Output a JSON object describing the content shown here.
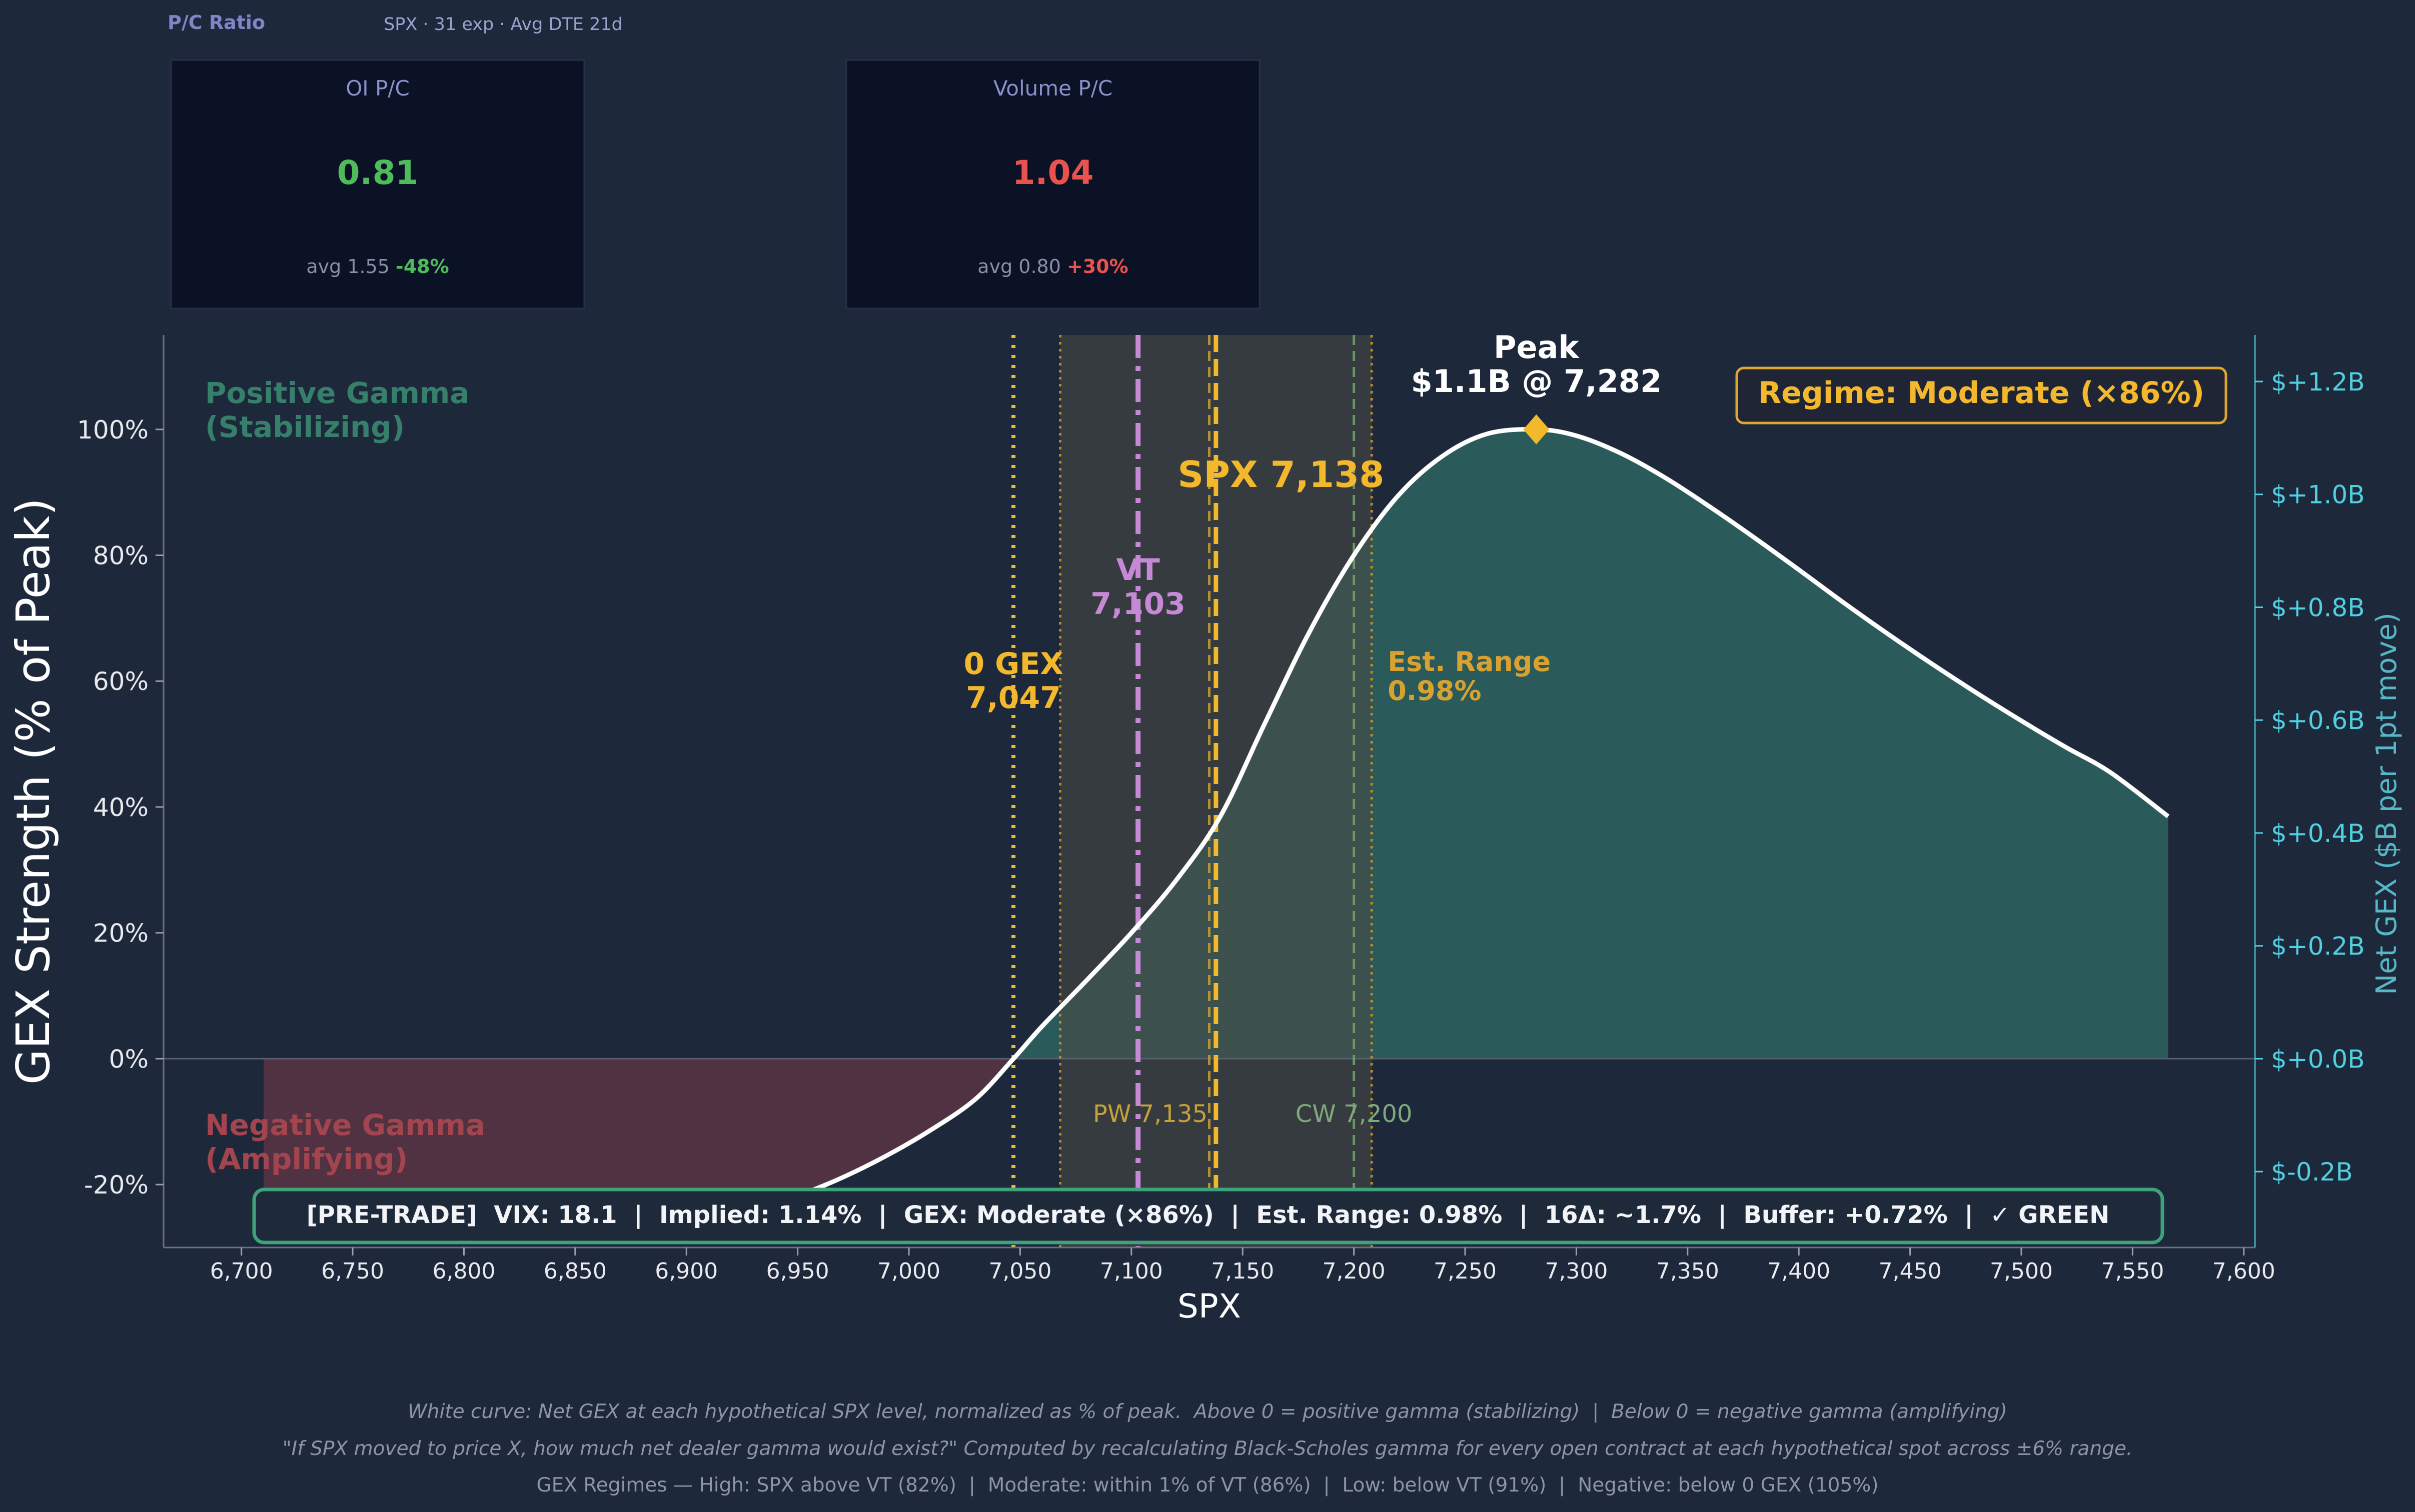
{
  "pc": {
    "title": "P/C Ratio",
    "subtitle": "SPX · 31 exp · Avg DTE 21d",
    "cards": [
      {
        "label": "OI P/C",
        "value": "0.81",
        "value_color": "#4fbb5b",
        "avg_text": "avg 1.55",
        "delta": "-48%",
        "delta_color": "#4fbb5b"
      },
      {
        "label": "Volume P/C",
        "value": "1.04",
        "value_color": "#e9524f",
        "avg_text": "avg 0.80",
        "delta": "+30%",
        "delta_color": "#e9524f"
      }
    ]
  },
  "chart_data": {
    "type": "area",
    "xlabel": "SPX",
    "ylabel": "GEX Strength (% of Peak)",
    "y2label": "Net GEX ($B per 1pt move)",
    "xlim": [
      6665,
      7605
    ],
    "ylim": [
      -30,
      115
    ],
    "y2lim": [
      -0.3345,
      1.2824
    ],
    "grid": false,
    "x_ticks": [
      6700,
      6750,
      6800,
      6850,
      6900,
      6950,
      7000,
      7050,
      7100,
      7150,
      7200,
      7250,
      7300,
      7350,
      7400,
      7450,
      7500,
      7550,
      7600
    ],
    "x_tick_labels": [
      "6,700",
      "6,750",
      "6,800",
      "6,850",
      "6,900",
      "6,950",
      "7,000",
      "7,050",
      "7,100",
      "7,150",
      "7,200",
      "7,250",
      "7,300",
      "7,350",
      "7,400",
      "7,450",
      "7,500",
      "7,550",
      "7,600"
    ],
    "y_ticks": [
      -20,
      0,
      20,
      40,
      60,
      80,
      100
    ],
    "y_tick_labels": [
      "-20%",
      "0%",
      "20%",
      "40%",
      "60%",
      "80%",
      "100%"
    ],
    "y2_ticks": [
      -0.2,
      0.0,
      0.2,
      0.4,
      0.6,
      0.8,
      1.0,
      1.2
    ],
    "y2_tick_labels": [
      "$-0.2B",
      "$+0.0B",
      "$+0.2B",
      "$+0.4B",
      "$+0.6B",
      "$+0.8B",
      "$+1.0B",
      "$+1.2B"
    ],
    "series": [
      {
        "x": [
          6710,
          6730,
          6750,
          6770,
          6790,
          6810,
          6830,
          6850,
          6870,
          6890,
          6910,
          6930,
          6950,
          6970,
          6990,
          7010,
          7030,
          7047,
          7060,
          7080,
          7100,
          7120,
          7140,
          7160,
          7180,
          7200,
          7220,
          7240,
          7260,
          7282,
          7300,
          7320,
          7340,
          7360,
          7380,
          7400,
          7420,
          7440,
          7460,
          7480,
          7500,
          7520,
          7540,
          7566
        ],
        "y": [
          -24,
          -24.8,
          -25.6,
          -26.5,
          -27.3,
          -27.9,
          -28.3,
          -28.4,
          -28.1,
          -27.3,
          -26,
          -24.2,
          -21.8,
          -18.9,
          -15.4,
          -11.3,
          -6.4,
          0,
          5.2,
          12.5,
          20,
          28.3,
          38.5,
          53.3,
          67.8,
          80,
          89.5,
          95.8,
          99.3,
          100,
          99,
          96.2,
          92.3,
          87.7,
          82.8,
          77.7,
          72.5,
          67.5,
          62.7,
          58.1,
          53.7,
          49.5,
          45.5,
          38.5
        ]
      }
    ],
    "regions": {
      "positive_label": [
        "Positive Gamma",
        "(Stabilizing)"
      ],
      "negative_label": [
        "Negative Gamma",
        "(Amplifying)"
      ],
      "range_band": [
        7068,
        7208
      ],
      "range_label": [
        "Est. Range",
        "0.98%"
      ]
    },
    "markers": {
      "spot": {
        "x": 7138,
        "label": "SPX 7,138"
      },
      "zero_gex": {
        "x": 7047,
        "label": [
          "0 GEX",
          "7,047"
        ]
      },
      "vt": {
        "x": 7103,
        "label": [
          "VT",
          "7,103"
        ]
      },
      "put_wall": {
        "x": 7135,
        "label": "PW 7,135"
      },
      "call_wall": {
        "x": 7200,
        "label": "CW 7,200"
      },
      "peak": {
        "x": 7282,
        "y": 100,
        "label": [
          "Peak",
          "$1.1B @ 7,282"
        ]
      }
    },
    "regime": "Regime: Moderate (×86%)",
    "status_bar": "[PRE-TRADE]  VIX: 18.1  |  Implied: 1.14%  |  GEX: Moderate (×86%)  |  Est. Range: 0.98%  |  16Δ: ~1.7%  |  Buffer: +0.72%  |  ✓ GREEN",
    "footer": [
      "White curve: Net GEX at each hypothetical SPX level, normalized as % of peak.  Above 0 = positive gamma (stabilizing)  |  Below 0 = negative gamma (amplifying)",
      "\"If SPX moved to price X, how much net dealer gamma would exist?\" Computed by recalculating Black-Scholes gamma for every open contract at each hypothetical spot across ±6% range.",
      "GEX Regimes — High: SPX above VT (82%)  |  Moderate: within 1% of VT (86%)  |  Low: below VT (91%)  |  Negative: below 0 GEX (105%)"
    ]
  },
  "colors": {
    "background": "#1e283b",
    "card_bg": "#0c1225",
    "curve": "#ffffff",
    "positive_fill": "#2f6e67",
    "negative_fill": "#7a3a48",
    "spot": "#f3b82c",
    "vt": "#c589d6",
    "zero_gex": "#f3b82c",
    "put_wall": "#c5a13a",
    "call_wall": "#6d9a6b",
    "right_axis": "#50d0e0",
    "status_border": "#3ea27a"
  }
}
